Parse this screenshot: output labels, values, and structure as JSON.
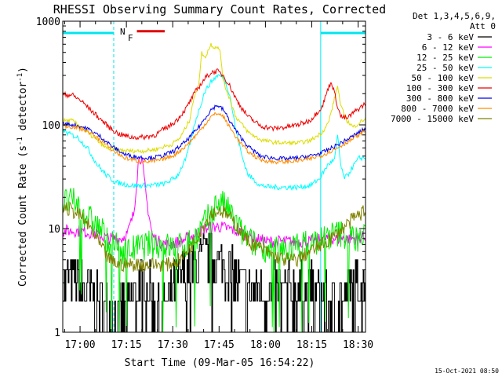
{
  "chart_data": {
    "type": "line",
    "title": "RHESSI Observing Summary Count Rates, Corrected",
    "xlabel": "Start Time (09-Mar-05 16:54:22)",
    "ylabel": "Corrected Count Rate (s⁻¹ detector⁻¹)",
    "ylabel_parts": {
      "a": "Corrected Count Rate (s",
      "sup1": "-1",
      "b": " detector",
      "sup2": "-1",
      "c": ")"
    },
    "y_scale": "log",
    "ylim": [
      1,
      1000
    ],
    "xlim_minutes": [
      0,
      98
    ],
    "x_start_time": "16:54:22",
    "x_ticks": [
      {
        "label": "17:00",
        "minutes": 5.6
      },
      {
        "label": "17:15",
        "minutes": 20.6
      },
      {
        "label": "17:30",
        "minutes": 35.6
      },
      {
        "label": "17:45",
        "minutes": 50.6
      },
      {
        "label": "18:00",
        "minutes": 65.6
      },
      {
        "label": "18:15",
        "minutes": 80.6
      },
      {
        "label": "18:30",
        "minutes": 95.6
      }
    ],
    "y_ticks": [
      {
        "label": "1",
        "value": 1
      },
      {
        "label": "10",
        "value": 10
      },
      {
        "label": "100",
        "value": 100
      },
      {
        "label": "1000",
        "value": 1000
      }
    ],
    "legend_header": [
      "Det 1,3,4,5,6,9,",
      "Att 0"
    ],
    "legend_placement": "right",
    "annotations": {
      "night_label": "N",
      "flare_label": "F",
      "night_color": "#00e5ee",
      "flare_color": "#e00000",
      "night_bars_minutes": [
        [
          0,
          16.5
        ],
        [
          83.5,
          98
        ]
      ],
      "flare_bar_minutes": [
        24,
        33
      ],
      "flare_bar_value": 800,
      "dashed_minutes": [
        16.5,
        98
      ],
      "solid_minutes": [
        0,
        83.5
      ]
    },
    "footer_date": "15-Oct-2021 08:50",
    "series": [
      {
        "name": "3 - 6 keV",
        "color": "#000000",
        "noise": 0.28,
        "stair": 1,
        "tail": 8,
        "x": [
          0,
          4,
          8,
          12,
          15,
          18,
          20,
          22,
          25,
          28,
          31,
          34,
          37,
          40,
          43,
          45,
          48,
          51,
          54,
          57,
          60,
          63,
          66,
          70,
          75,
          80,
          84,
          87,
          90,
          93,
          96,
          98
        ],
        "y": [
          3,
          3,
          2.5,
          2,
          1.6,
          1.5,
          1.6,
          2,
          3,
          3,
          1.5,
          2,
          3,
          4,
          4.5,
          5,
          5,
          4.5,
          4,
          3,
          2.5,
          2.5,
          2.5,
          2.5,
          2.5,
          2.5,
          2.2,
          2,
          2,
          2.5,
          3,
          3
        ]
      },
      {
        "name": "6 - 12 keV",
        "color": "#ff00ff",
        "noise": 0.06,
        "tail": 0,
        "x": [
          0,
          5,
          10,
          15,
          19,
          21,
          23,
          24.5,
          25.5,
          27,
          29,
          31,
          34,
          38,
          42,
          46,
          50,
          54,
          58,
          62,
          66,
          70,
          75,
          80,
          85,
          88,
          92,
          95,
          98
        ],
        "y": [
          9.5,
          9.5,
          9,
          8,
          8,
          9,
          14,
          45,
          50,
          20,
          8.5,
          7.5,
          7,
          7.5,
          8.5,
          10,
          10.5,
          10,
          9,
          8,
          7.5,
          7.5,
          7.5,
          7.5,
          8,
          8,
          8,
          8,
          8.5
        ]
      },
      {
        "name": "12 - 25 keV",
        "color": "#00ee00",
        "noise": 0.14,
        "tail": 7,
        "x": [
          0,
          4,
          8,
          12,
          16,
          20,
          24,
          28,
          32,
          36,
          40,
          44,
          48,
          50,
          52,
          55,
          58,
          62,
          66,
          70,
          74,
          78,
          82,
          86,
          90,
          94,
          98
        ],
        "y": [
          18,
          18,
          13,
          10,
          7,
          6,
          6.5,
          7,
          7,
          6.5,
          7,
          9,
          14,
          18,
          17,
          13,
          9,
          7,
          6.5,
          6,
          6.5,
          7,
          7.5,
          8.5,
          9,
          8,
          8
        ]
      },
      {
        "name": "25 - 50 keV",
        "color": "#00ffff",
        "noise": 0.025,
        "tail": 0,
        "x": [
          0,
          2,
          5,
          8,
          11,
          14,
          17,
          22,
          28,
          33,
          37,
          40,
          43,
          46,
          48,
          50,
          52,
          54,
          56,
          58,
          60,
          64,
          68,
          72,
          76,
          80,
          83,
          86,
          88,
          89,
          90,
          91,
          92,
          94,
          96,
          98
        ],
        "y": [
          88,
          82,
          75,
          60,
          42,
          33,
          28,
          26,
          26,
          27,
          32,
          48,
          110,
          210,
          260,
          300,
          290,
          200,
          90,
          50,
          33,
          26,
          25,
          25,
          25,
          26,
          30,
          42,
          46,
          80,
          40,
          31,
          32,
          40,
          48,
          48
        ]
      },
      {
        "name": "50 - 100 keV",
        "color": "#dddd00",
        "noise": 0.02,
        "tail": 0,
        "x": [
          0,
          3,
          6,
          10,
          14,
          18,
          22,
          26,
          30,
          33,
          35,
          38,
          41,
          42,
          43,
          44,
          45,
          46,
          47,
          48,
          49,
          50,
          51,
          52,
          54,
          56,
          60,
          64,
          68,
          72,
          76,
          80,
          84,
          86,
          88,
          89,
          90,
          92,
          94,
          96,
          98
        ],
        "y": [
          110,
          110,
          95,
          75,
          60,
          57,
          56,
          56,
          58,
          62,
          64,
          75,
          110,
          160,
          200,
          250,
          500,
          440,
          520,
          600,
          560,
          570,
          500,
          260,
          180,
          120,
          85,
          72,
          68,
          67,
          67,
          70,
          85,
          105,
          180,
          240,
          150,
          110,
          95,
          105,
          115
        ]
      },
      {
        "name": "100 - 300 keV",
        "color": "#ee0000",
        "noise": 0.025,
        "tail": 0,
        "x": [
          0,
          3,
          6,
          9,
          12,
          15,
          18,
          22,
          26,
          30,
          33,
          35,
          37,
          40,
          43,
          46,
          48,
          50,
          52,
          54,
          56,
          58,
          60,
          64,
          68,
          72,
          76,
          80,
          84,
          86,
          87,
          88,
          89,
          90,
          92,
          94,
          96,
          98
        ],
        "y": [
          195,
          195,
          170,
          140,
          115,
          95,
          82,
          76,
          76,
          80,
          92,
          100,
          112,
          145,
          210,
          280,
          320,
          330,
          300,
          240,
          180,
          145,
          120,
          98,
          92,
          95,
          100,
          110,
          150,
          230,
          260,
          200,
          150,
          120,
          115,
          130,
          145,
          160
        ]
      },
      {
        "name": "300 - 800 keV",
        "color": "#0000ee",
        "noise": 0.02,
        "tail": 0,
        "x": [
          0,
          4,
          8,
          12,
          16,
          20,
          24,
          28,
          32,
          36,
          40,
          44,
          48,
          50,
          52,
          54,
          57,
          60,
          64,
          68,
          72,
          76,
          80,
          84,
          88,
          92,
          96,
          98
        ],
        "y": [
          102,
          100,
          92,
          78,
          62,
          52,
          49,
          48,
          50,
          56,
          70,
          95,
          140,
          155,
          140,
          110,
          80,
          62,
          50,
          48,
          47,
          48,
          50,
          54,
          62,
          72,
          85,
          92
        ]
      },
      {
        "name": "800 - 7000 keV",
        "color": "#ff8c00",
        "noise": 0.02,
        "tail": 0,
        "x": [
          0,
          4,
          8,
          12,
          16,
          20,
          24,
          28,
          32,
          36,
          40,
          44,
          48,
          50,
          52,
          54,
          57,
          60,
          64,
          68,
          72,
          76,
          80,
          84,
          88,
          92,
          96,
          98
        ],
        "y": [
          98,
          95,
          87,
          72,
          57,
          48,
          45,
          44,
          46,
          51,
          63,
          85,
          120,
          130,
          120,
          95,
          70,
          55,
          46,
          44,
          44,
          45,
          47,
          51,
          58,
          68,
          80,
          88
        ]
      },
      {
        "name": "7000 - 15000 keV",
        "color": "#808000",
        "noise": 0.07,
        "tail": 0,
        "x": [
          0,
          3,
          6,
          9,
          12,
          15,
          18,
          22,
          26,
          30,
          34,
          38,
          42,
          45,
          48,
          51,
          54,
          57,
          60,
          64,
          68,
          72,
          76,
          80,
          84,
          88,
          92,
          95,
          98
        ],
        "y": [
          16,
          15,
          13,
          10,
          7,
          5,
          4.5,
          4.5,
          4.5,
          4.5,
          4.5,
          5,
          7,
          10,
          14,
          15,
          13,
          10,
          7.5,
          6.5,
          5.5,
          5,
          5,
          6,
          7,
          8.5,
          11,
          13,
          15
        ]
      }
    ]
  }
}
